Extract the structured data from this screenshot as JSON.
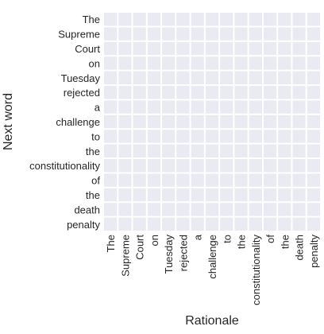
{
  "chart_data": {
    "type": "heatmap",
    "xlabel": "Rationale",
    "ylabel": "Next word",
    "x_categories": [
      "The",
      "Supreme",
      "Court",
      "on",
      "Tuesday",
      "rejected",
      "a",
      "challenge",
      "to",
      "the",
      "constitutionality",
      "of",
      "the",
      "death",
      "penalty"
    ],
    "y_categories": [
      "The",
      "Supreme",
      "Court",
      "on",
      "Tuesday",
      "rejected",
      "a",
      "challenge",
      "to",
      "the",
      "constitutionality",
      "of",
      "the",
      "death",
      "penalty"
    ],
    "color": "#eaeaf2"
  }
}
